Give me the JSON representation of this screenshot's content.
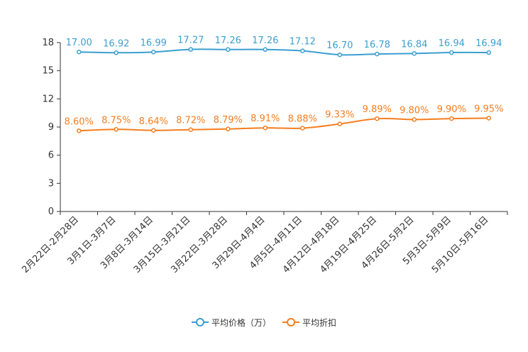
{
  "chart_data": {
    "type": "line",
    "categories": [
      "2月22日-2月28日",
      "3月1日-3月7日",
      "3月8日-3月14日",
      "3月15日-3月21日",
      "3月22日-3月28日",
      "3月29日-4月4日",
      "4月5日-4月11日",
      "4月12日-4月18日",
      "4月19日-4月25日",
      "4月26日-5月2日",
      "5月3日-5月9日",
      "5月10日-5月16日"
    ],
    "y_ticks": [
      0,
      3,
      6,
      9,
      12,
      15,
      18
    ],
    "ylim": [
      0,
      18
    ],
    "series": [
      {
        "name": "平均价格（万）",
        "color": "#3a9fd1",
        "values": [
          17.0,
          16.92,
          16.99,
          17.27,
          17.26,
          17.26,
          17.12,
          16.7,
          16.78,
          16.84,
          16.94,
          16.94
        ],
        "labels": [
          "17.00",
          "16.92",
          "16.99",
          "17.27",
          "17.26",
          "17.26",
          "17.12",
          "16.70",
          "16.78",
          "16.84",
          "16.94",
          "16.94"
        ]
      },
      {
        "name": "平均折扣",
        "color": "#f57e20",
        "values": [
          8.6,
          8.75,
          8.64,
          8.72,
          8.79,
          8.91,
          8.88,
          9.33,
          9.89,
          9.8,
          9.9,
          9.95
        ],
        "labels": [
          "8.60%",
          "8.75%",
          "8.64%",
          "8.72%",
          "8.79%",
          "8.91%",
          "8.88%",
          "9.33%",
          "9.89%",
          "9.80%",
          "9.90%",
          "9.95%"
        ]
      }
    ]
  }
}
